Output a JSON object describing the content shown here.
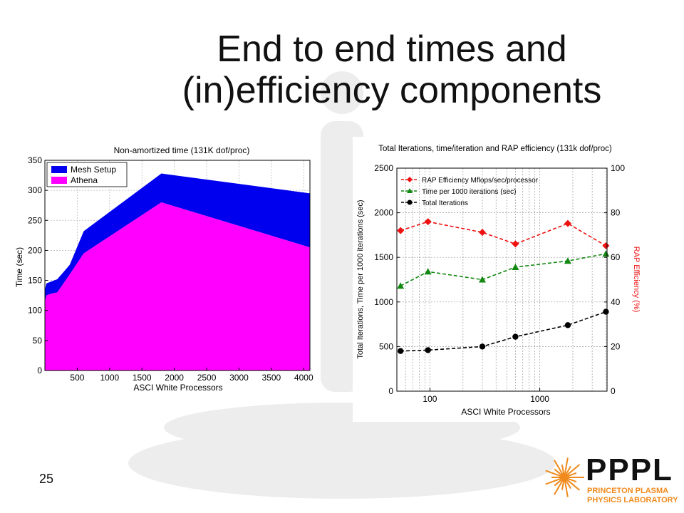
{
  "slide": {
    "title_line1": "End to end times and",
    "title_line2": "(in)efficiency components",
    "page_number": "25"
  },
  "logo": {
    "name": "PPPL",
    "line1": "PRINCETON PLASMA",
    "line2": "PHYSICS LABORATORY",
    "colors": {
      "primary": "#111111",
      "accent": "#f08a1c"
    }
  },
  "chart_data": [
    {
      "type": "area",
      "title": "Non-amortized time (131K dof/proc)",
      "xlabel": "ASCI White Processors",
      "ylabel": "Time (sec)",
      "xlim": [
        0,
        4096
      ],
      "ylim": [
        0,
        350
      ],
      "xticks": [
        500,
        1000,
        1500,
        2000,
        2500,
        3000,
        3500,
        4000
      ],
      "yticks": [
        0,
        50,
        100,
        150,
        200,
        250,
        300,
        350
      ],
      "grid": true,
      "legend_position": "top-left",
      "stacked": true,
      "x": [
        1,
        24,
        96,
        192,
        384,
        600,
        1800,
        4096
      ],
      "series": [
        {
          "name": "Athena",
          "color": "#ff00ff",
          "values": [
            115,
            125,
            128,
            130,
            160,
            195,
            280,
            205
          ]
        },
        {
          "name": "Mesh Setup",
          "color": "#0000ee",
          "values": [
            20,
            20,
            20,
            22,
            16,
            37,
            48,
            90
          ]
        }
      ]
    },
    {
      "type": "line",
      "title": "Total Iterations, time/iteration and RAP efficiency (131k dof/proc)",
      "xlabel": "ASCI White Processors",
      "ylabel": "Total Iterations, Time per 1000 iterations (sec)",
      "y2label": "RAP Efficiency (%)",
      "xscale": "log",
      "xlim": [
        50,
        4096
      ],
      "ylim": [
        0,
        2500
      ],
      "y2lim": [
        0,
        100
      ],
      "xticks": [
        100,
        1000
      ],
      "yticks": [
        0,
        500,
        1000,
        1500,
        2000,
        2500
      ],
      "y2ticks": [
        0,
        20,
        40,
        60,
        80,
        100
      ],
      "grid": true,
      "legend_position": "top-left",
      "x": [
        54,
        96,
        300,
        600,
        1800,
        4000
      ],
      "series": [
        {
          "name": "RAP Efficiency Mflops/sec/processor",
          "color": "#ee1111",
          "marker": "diamond",
          "axis": "left",
          "values": [
            1800,
            1900,
            1780,
            1650,
            1880,
            1630
          ]
        },
        {
          "name": "Time per 1000 iterations (sec)",
          "color": "#118811",
          "marker": "triangle",
          "axis": "left",
          "values": [
            1180,
            1340,
            1250,
            1390,
            1460,
            1540
          ]
        },
        {
          "name": "Total Iterations",
          "color": "#000000",
          "marker": "circle",
          "axis": "left",
          "values": [
            450,
            460,
            500,
            610,
            740,
            890
          ]
        }
      ]
    }
  ]
}
